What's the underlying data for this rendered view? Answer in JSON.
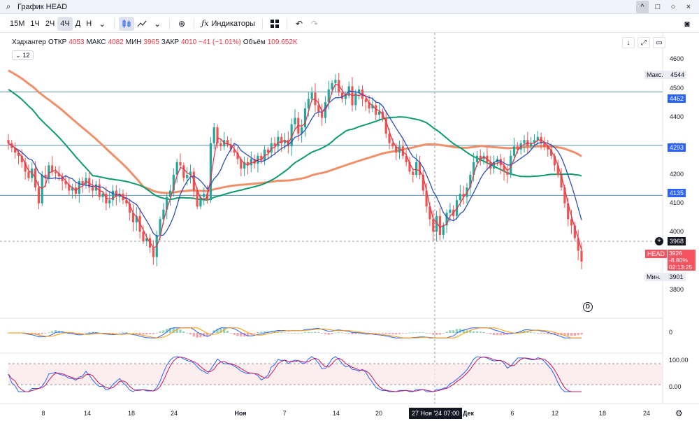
{
  "window": {
    "title": "График HEAD",
    "buttons": [
      "^",
      "□",
      "○",
      "×"
    ]
  },
  "toolbar": {
    "timeframes": [
      "15М",
      "1Ч",
      "2Ч",
      "4Ч",
      "Д",
      "Н"
    ],
    "active_timeframe": "4Ч",
    "indicators_label": "Индикаторы"
  },
  "legend": {
    "name": "Хэдхантер",
    "open_label": "ОТКР",
    "open": "4053",
    "high_label": "МАКС",
    "high": "4082",
    "low_label": "МИН",
    "low": "3965",
    "close_label": "ЗАКР",
    "close": "4010",
    "change": "−41 (−1.01%)",
    "volume_label": "Объём",
    "volume": "109.652K",
    "count": "12"
  },
  "price_axis": {
    "ticks": [
      "4600",
      "4500",
      "4400",
      "4300",
      "4200",
      "4100",
      "4000",
      "3900",
      "3800"
    ],
    "max_label": "Макс.",
    "max_value": "4544",
    "min_label": "Мин.",
    "min_value": "3901",
    "levels": [
      "4462",
      "4293",
      "4135"
    ],
    "crosshair_price": "3968",
    "symbol_tag": "HEAD",
    "last_price": "3926",
    "last_change": "-8.80%",
    "countdown": "02:13:25"
  },
  "macd_axis": {
    "zero": "0"
  },
  "stoch_axis": {
    "top": "100.00",
    "bottom": "0.00"
  },
  "time_axis": {
    "labels": [
      "8",
      "14",
      "18",
      "24",
      "Ноя",
      "7",
      "14",
      "20",
      "Дек",
      "6",
      "12",
      "18",
      "24"
    ],
    "crosshair_time": "27 Ноя '24   07:00"
  },
  "colors": {
    "up": "#26a69a",
    "down": "#ef5350",
    "ma_fast": "#e03a4e",
    "ma_mid": "#2c4fb8",
    "ma_slow": "#0b9b6e",
    "ma_long": "#f0906a",
    "level": "#5b8fa8"
  },
  "chart_data": {
    "type": "candlestick",
    "price_range": [
      3780,
      4620
    ],
    "levels": [
      4462,
      4293,
      4135
    ],
    "closes": [
      4300,
      4285,
      4270,
      4260,
      4240,
      4210,
      4190,
      4220,
      4160,
      4110,
      4200,
      4190,
      4230,
      4210,
      4205,
      4195,
      4180,
      4170,
      4150,
      4160,
      4140,
      4180,
      4170,
      4190,
      4160,
      4150,
      4170,
      4130,
      4140,
      4110,
      4120,
      4150,
      4130,
      4140,
      4120,
      4110,
      4080,
      4050,
      4070,
      4020,
      3990,
      4000,
      3970,
      3940,
      4010,
      4060,
      4090,
      4130,
      4150,
      4200,
      4240,
      4230,
      4190,
      4200,
      4210,
      4150,
      4100,
      4130,
      4140,
      4120,
      4300,
      4350,
      4300,
      4290,
      4310,
      4295,
      4280,
      4270,
      4250,
      4220,
      4240,
      4230,
      4250,
      4235,
      4260,
      4245,
      4280,
      4270,
      4300,
      4290,
      4320,
      4300,
      4310,
      4290,
      4360,
      4380,
      4330,
      4350,
      4410,
      4440,
      4460,
      4420,
      4400,
      4380,
      4430,
      4470,
      4490,
      4500,
      4460,
      4440,
      4450,
      4480,
      4420,
      4460,
      4470,
      4440,
      4430,
      4410,
      4420,
      4390,
      4400,
      4380,
      4330,
      4300,
      4290,
      4270,
      4290,
      4260,
      4240,
      4210,
      4200,
      4240,
      4200,
      4150,
      4100,
      4060,
      4020,
      4070,
      4010,
      4040,
      4080,
      4090,
      4070,
      4120,
      4140,
      4130,
      4160,
      4200,
      4240,
      4260,
      4250,
      4260,
      4240,
      4220,
      4240,
      4250,
      4230,
      4210,
      4200,
      4260,
      4290,
      4280,
      4300,
      4310,
      4290,
      4300,
      4310,
      4320,
      4300,
      4290,
      4280,
      4260,
      4230,
      4200,
      4160,
      4110,
      4060,
      4040,
      4000,
      3960,
      3926
    ],
    "macd_range": [
      -1,
      1
    ],
    "stoch_range": [
      0,
      100
    ],
    "stoch_bands": [
      80,
      20
    ]
  }
}
